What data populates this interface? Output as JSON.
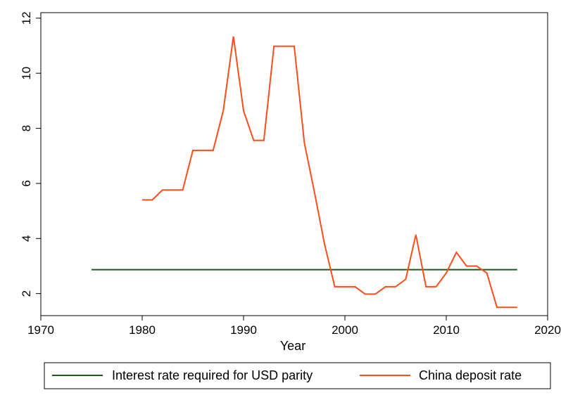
{
  "chart_data": {
    "type": "line",
    "title": "",
    "xlabel": "Year",
    "ylabel": "",
    "xlim": [
      1970,
      2020
    ],
    "ylim": [
      1.2,
      12.2
    ],
    "x_ticks": [
      "1970",
      "1980",
      "1990",
      "2000",
      "2010",
      "2020"
    ],
    "y_ticks": [
      "2",
      "4",
      "6",
      "8",
      "10",
      "12"
    ],
    "grid": false,
    "legend_position": "bottom",
    "series": [
      {
        "name": "Interest rate required for USD parity",
        "color": "#1a5c1a",
        "x": [
          1975,
          2017
        ],
        "y": [
          2.87,
          2.87
        ]
      },
      {
        "name": "China deposit rate",
        "color": "#ff4d1a",
        "x": [
          1980,
          1981,
          1982,
          1983,
          1984,
          1985,
          1986,
          1987,
          1988,
          1989,
          1990,
          1991,
          1992,
          1993,
          1994,
          1995,
          1996,
          1997,
          1998,
          1999,
          2000,
          2001,
          2002,
          2003,
          2004,
          2005,
          2006,
          2007,
          2008,
          2009,
          2010,
          2011,
          2012,
          2013,
          2014,
          2015,
          2016,
          2017
        ],
        "y": [
          5.4,
          5.4,
          5.76,
          5.76,
          5.76,
          7.2,
          7.2,
          7.2,
          8.64,
          11.34,
          8.64,
          7.56,
          7.56,
          10.98,
          10.98,
          10.98,
          7.47,
          5.67,
          3.78,
          2.25,
          2.25,
          2.25,
          1.98,
          1.98,
          2.25,
          2.25,
          2.52,
          4.14,
          2.25,
          2.25,
          2.75,
          3.5,
          3.0,
          3.0,
          2.75,
          1.5,
          1.5,
          1.5
        ]
      }
    ]
  }
}
